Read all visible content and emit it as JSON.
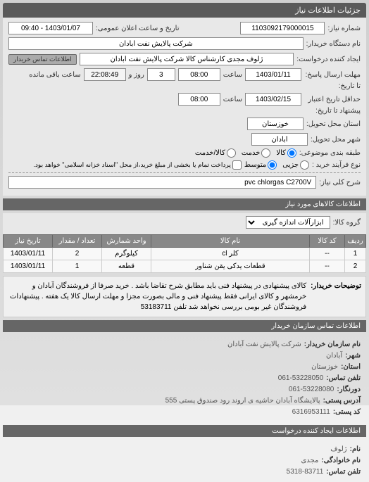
{
  "header": {
    "title": "جزئیات اطلاعات نیاز"
  },
  "form": {
    "request_number_label": "شماره نیاز:",
    "request_number": "1103092179000015",
    "public_date_label": "تاریخ و ساعت اعلان عمومی:",
    "public_date": "1403/01/07 - 09:40",
    "buyer_device_label": "نام دستگاه خریدار:",
    "buyer_device": "شرکت پالایش نفت آبادان",
    "requester_label": "ایجاد کننده درخواست:",
    "requester": "ژلوف مجدی کارشناس کالا شرکت پالایش نفت آبادان",
    "contact_btn": "اطلاعات تماس خریدار",
    "deadline_label": "مهلت ارسال پاسخ:",
    "deadline_start_label": "تا تاریخ:",
    "deadline_date": "1403/01/11",
    "time_label": "ساعت",
    "deadline_time": "08:00",
    "days_remain": "3",
    "days_label": "روز و",
    "time_remain": "22:08:49",
    "time_remain_label": "ساعت باقی مانده",
    "min_valid_label": "حداقل تاریخ اعتبار",
    "min_valid_label2": "پیشنهاد تا تاریخ:",
    "valid_date": "1403/02/15",
    "valid_time": "08:00",
    "delivery_province_label": "استان محل تحویل:",
    "delivery_province": "خوزستان",
    "delivery_city_label": "شهر محل تحویل:",
    "delivery_city": "آبادان",
    "subject_type_label": "طبقه بندی موضوعی:",
    "subject_goods": "کالا",
    "subject_service": "خدمت",
    "subject_goods_service": "کالا/خدمت",
    "purchase_type_label": "نوع فرآیند خرید :",
    "purchase_small": "جزیی",
    "purchase_medium": "متوسط",
    "purchase_note": "پرداخت تمام یا بخشی از مبلغ خرید،از محل \"اسناد خزانه اسلامی\" خواهد بود.",
    "need_desc_label": "شرح کلی نیاز:",
    "need_desc": "pvc chlorgas C2700V"
  },
  "items_section": {
    "title": "اطلاعات کالاهای مورد نیاز",
    "group_label": "گروه کالا:",
    "group_value": "ابزارآلات اندازه گیری"
  },
  "table": {
    "columns": [
      "ردیف",
      "کد کالا",
      "نام کالا",
      "واحد شمارش",
      "تعداد / مقدار",
      "تاریخ نیاز"
    ],
    "rows": [
      [
        "1",
        "--",
        "کلر cl",
        "کیلوگرم",
        "2",
        "1403/01/11"
      ],
      [
        "2",
        "--",
        "قطعات یدکی یقن شناور",
        "قطعه",
        "1",
        "1403/01/11"
      ]
    ]
  },
  "buyer_notes": {
    "label": "توضیحات خریدار:",
    "text": "کالای پیشنهادی در پیشنهاد فنی باید مطابق شرح تقاضا باشد . خرید صرفا از فروشندگان آبادان و خرمشهر و کالای ایرانی فقط پیشنهاد فنی و مالی بصورت مجزا و مهلت ارسال کالا یک هفته . پیشنهادات فروشندگان غیر بومی بررسی نخواهد شد تلفن 53183711"
  },
  "org_info": {
    "section_title": "اطلاعات تماس سازمان خریدار",
    "org_name_label": "نام سازمان خریدار:",
    "org_name": "شرکت پالایش نفت آبادان",
    "city_label": "شهر:",
    "city": "آبادان",
    "province_label": "استان:",
    "province": "خوزستان",
    "phone_label": "تلفن تماس:",
    "phone": "061-53228050",
    "fax_label": "دورنگار:",
    "fax": "061-53228080",
    "postal_label": "آدرس پستی:",
    "postal": "پالایشگاه آبادان حاشیه ی اروند رود صندوق پستی 555",
    "postcode_label": "کد پستی:",
    "postcode": "6316953111"
  },
  "creator_info": {
    "section_title": "اطلاعات ایجاد کننده درخواست",
    "name_label": "نام:",
    "name": "ژلوف",
    "family_label": "نام خانوادگی:",
    "family": "مجدی",
    "phone_label": "تلفن تماس:",
    "phone": "5318-83711"
  }
}
